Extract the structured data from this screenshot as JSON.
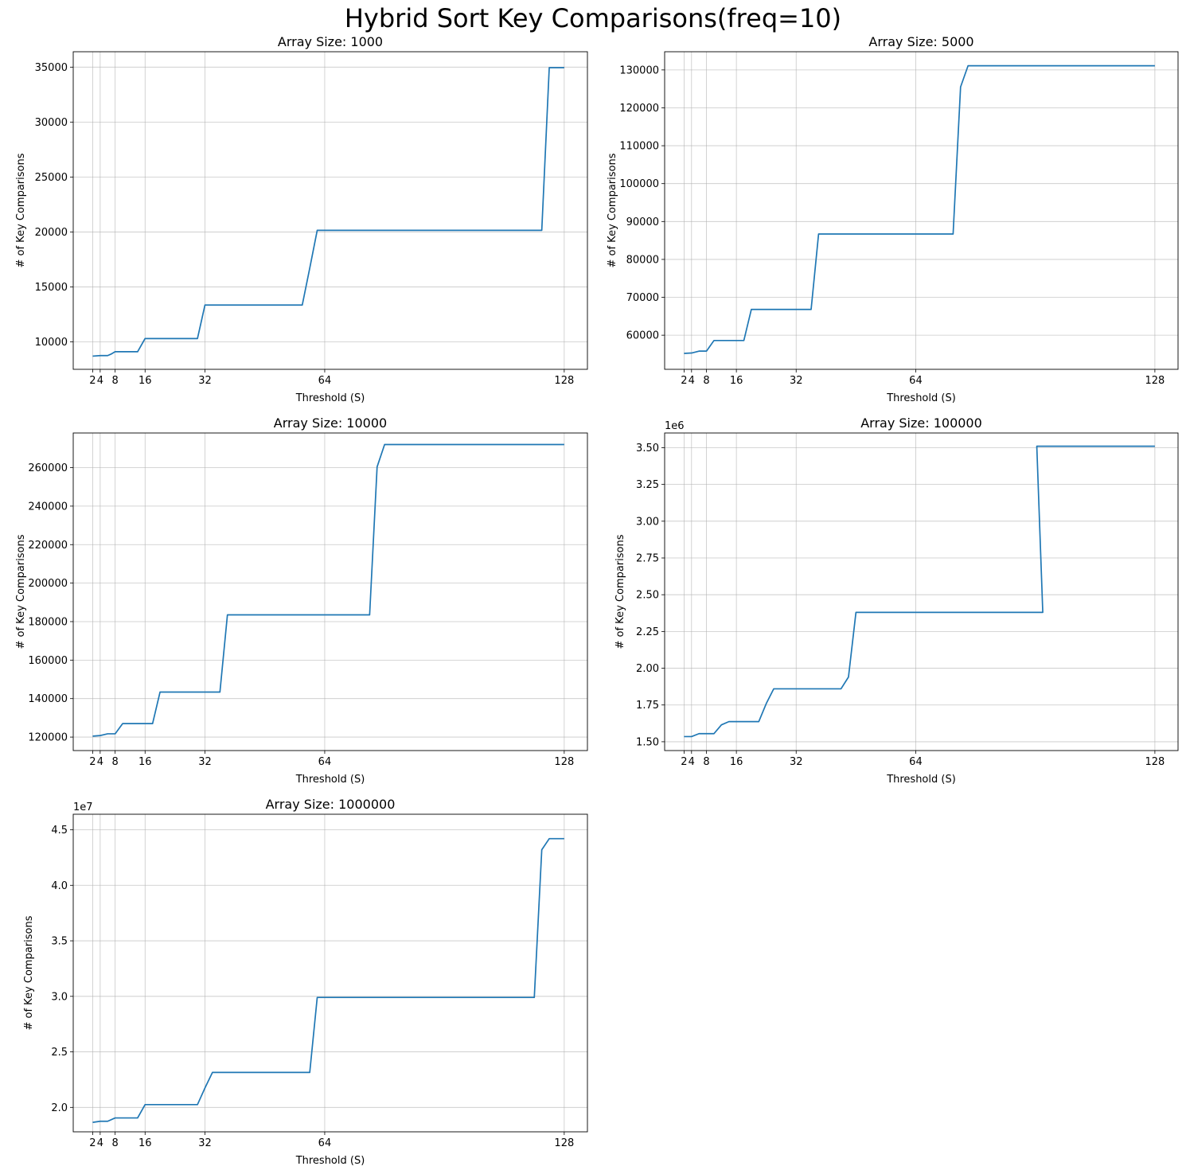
{
  "figure": {
    "title": "Hybrid Sort Key Comparisons(freq=10)"
  },
  "chart_data": [
    {
      "type": "line",
      "title": "Array Size: 1000",
      "xlabel": "Threshold (S)",
      "ylabel": "# of Key Comparisons",
      "xlim": [
        -3.2,
        134.2
      ],
      "ylim": [
        7500,
        36400
      ],
      "xticks": [
        2,
        4,
        8,
        16,
        32,
        64,
        128
      ],
      "yticks": [
        10000,
        15000,
        20000,
        25000,
        30000,
        35000
      ],
      "ytick_labels": [
        "10000",
        "15000",
        "20000",
        "25000",
        "30000",
        "35000"
      ],
      "offset_label": "",
      "grid": true,
      "color": "#1f77b4",
      "x": [
        2,
        4,
        6,
        7,
        8,
        12,
        14,
        16,
        18,
        20,
        24,
        28,
        30,
        32,
        34,
        40,
        48,
        56,
        58,
        60,
        62,
        64,
        66,
        80,
        96,
        112,
        120,
        122,
        124,
        126,
        128
      ],
      "y": [
        8700,
        8750,
        8750,
        8900,
        9100,
        9100,
        9100,
        10300,
        10300,
        10300,
        10300,
        10300,
        10300,
        13350,
        13350,
        13350,
        13350,
        13350,
        13350,
        16700,
        20150,
        20150,
        20150,
        20150,
        20150,
        20150,
        20150,
        20150,
        34950,
        34950,
        34950
      ]
    },
    {
      "type": "line",
      "title": "Array Size: 5000",
      "xlabel": "Threshold (S)",
      "ylabel": "# of Key Comparisons",
      "xlim": [
        -3.2,
        134.2
      ],
      "ylim": [
        51000,
        134800
      ],
      "xticks": [
        2,
        4,
        8,
        16,
        32,
        64,
        128
      ],
      "yticks": [
        60000,
        70000,
        80000,
        90000,
        100000,
        110000,
        120000,
        130000
      ],
      "ytick_labels": [
        "60000",
        "70000",
        "80000",
        "90000",
        "100000",
        "110000",
        "120000",
        "130000"
      ],
      "offset_label": "",
      "grid": true,
      "color": "#1f77b4",
      "x": [
        2,
        4,
        6,
        8,
        10,
        16,
        18,
        20,
        24,
        30,
        36,
        38,
        40,
        48,
        56,
        64,
        72,
        74,
        76,
        78,
        80,
        96,
        112,
        128
      ],
      "y": [
        55200,
        55300,
        55800,
        55800,
        58600,
        58600,
        58600,
        66800,
        66800,
        66800,
        66800,
        86700,
        86700,
        86700,
        86700,
        86700,
        86700,
        86700,
        125500,
        131100,
        131100,
        131100,
        131100,
        131100
      ]
    },
    {
      "type": "line",
      "title": "Array Size: 10000",
      "xlabel": "Threshold (S)",
      "ylabel": "# of Key Comparisons",
      "xlim": [
        -3.2,
        134.2
      ],
      "ylim": [
        113000,
        278000
      ],
      "xticks": [
        2,
        4,
        8,
        16,
        32,
        64,
        128
      ],
      "yticks": [
        120000,
        140000,
        160000,
        180000,
        200000,
        220000,
        240000,
        260000
      ],
      "ytick_labels": [
        "120000",
        "140000",
        "160000",
        "180000",
        "200000",
        "220000",
        "240000",
        "260000"
      ],
      "offset_label": "",
      "grid": true,
      "color": "#1f77b4",
      "x": [
        2,
        4,
        6,
        8,
        10,
        16,
        18,
        20,
        24,
        32,
        36,
        38,
        40,
        48,
        56,
        64,
        72,
        76,
        78,
        80,
        96,
        112,
        128
      ],
      "y": [
        120500,
        120800,
        121700,
        121700,
        127000,
        127000,
        127000,
        143400,
        143400,
        143400,
        143400,
        183500,
        183500,
        183500,
        183500,
        183500,
        183500,
        183500,
        260400,
        272000,
        272000,
        272000,
        272000
      ]
    },
    {
      "type": "line",
      "title": "Array Size: 100000",
      "xlabel": "Threshold (S)",
      "ylabel": "# of Key Comparisons",
      "xlim": [
        -3.2,
        134.2
      ],
      "ylim": [
        1.44,
        3.6
      ],
      "xticks": [
        2,
        4,
        8,
        16,
        32,
        64,
        128
      ],
      "yticks": [
        1.5,
        1.75,
        2.0,
        2.25,
        2.5,
        2.75,
        3.0,
        3.25,
        3.5
      ],
      "ytick_labels": [
        "1.50",
        "1.75",
        "2.00",
        "2.25",
        "2.50",
        "2.75",
        "3.00",
        "3.25",
        "3.50"
      ],
      "offset_label": "1e6",
      "grid": true,
      "color": "#1f77b4",
      "x": [
        2,
        4,
        6,
        8,
        10,
        12,
        14,
        16,
        18,
        20,
        22,
        24,
        26,
        28,
        32,
        40,
        44,
        46,
        48,
        56,
        64,
        72,
        80,
        96,
        98,
        96.4,
        100,
        112,
        128
      ],
      "y": [
        1.535,
        1.535,
        1.555,
        1.555,
        1.555,
        1.615,
        1.637,
        1.637,
        1.637,
        1.637,
        1.637,
        1.76,
        1.86,
        1.86,
        1.86,
        1.86,
        1.86,
        1.94,
        2.38,
        2.38,
        2.38,
        2.38,
        2.38,
        2.38,
        2.38,
        3.51,
        3.51,
        3.51,
        3.51
      ]
    },
    {
      "type": "line",
      "title": "Array Size: 1000000",
      "xlabel": "Threshold (S)",
      "ylabel": "# of Key Comparisons",
      "xlim": [
        -3.2,
        134.2
      ],
      "ylim": [
        1.78,
        4.64
      ],
      "xticks": [
        2,
        4,
        8,
        16,
        32,
        64,
        128
      ],
      "yticks": [
        2.0,
        2.5,
        3.0,
        3.5,
        4.0,
        4.5
      ],
      "ytick_labels": [
        "2.0",
        "2.5",
        "3.0",
        "3.5",
        "4.0",
        "4.5"
      ],
      "offset_label": "1e7",
      "grid": true,
      "color": "#1f77b4",
      "x": [
        2,
        4,
        6,
        8,
        10,
        12,
        14,
        16,
        18,
        20,
        24,
        28,
        30,
        32,
        34,
        40,
        48,
        56,
        60,
        62,
        64,
        72,
        80,
        96,
        112,
        120,
        122,
        124,
        128
      ],
      "y": [
        1.865,
        1.875,
        1.875,
        1.905,
        1.905,
        1.905,
        1.905,
        2.025,
        2.025,
        2.025,
        2.025,
        2.025,
        2.025,
        2.175,
        2.315,
        2.315,
        2.315,
        2.315,
        2.315,
        2.99,
        2.99,
        2.99,
        2.99,
        2.99,
        2.99,
        2.99,
        4.32,
        4.42,
        4.42
      ]
    }
  ]
}
